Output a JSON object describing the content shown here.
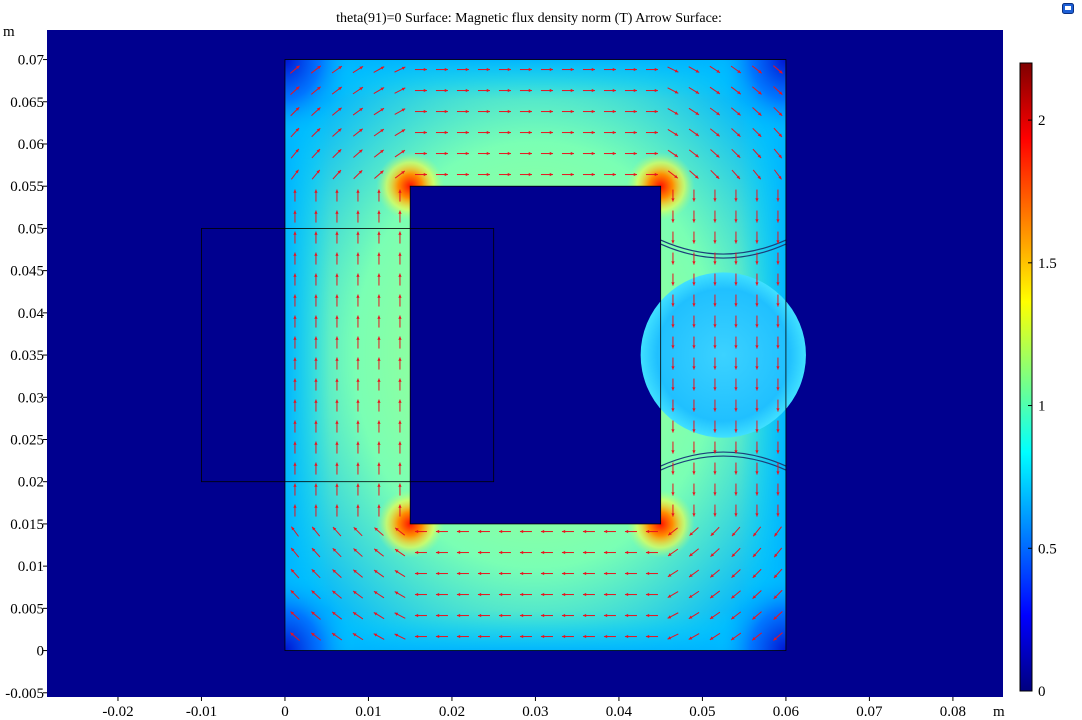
{
  "chart_data": {
    "type": "heatmap",
    "title": "theta(91)=0   Surface: Magnetic flux density norm (T)  Arrow Surface:",
    "xlabel": "m",
    "ylabel": "m",
    "xlim": [
      -0.0285,
      0.086
    ],
    "ylim": [
      -0.0055,
      0.0735
    ],
    "x_ticks": [
      {
        "value": -0.02,
        "label": "-0.02"
      },
      {
        "value": -0.01,
        "label": "-0.01"
      },
      {
        "value": 0,
        "label": "0"
      },
      {
        "value": 0.01,
        "label": "0.01"
      },
      {
        "value": 0.02,
        "label": "0.02"
      },
      {
        "value": 0.03,
        "label": "0.03"
      },
      {
        "value": 0.04,
        "label": "0.04"
      },
      {
        "value": 0.05,
        "label": "0.05"
      },
      {
        "value": 0.06,
        "label": "0.06"
      },
      {
        "value": 0.07,
        "label": "0.07"
      },
      {
        "value": 0.08,
        "label": "0.08"
      }
    ],
    "y_ticks": [
      {
        "value": -0.005,
        "label": "-0.005"
      },
      {
        "value": 0,
        "label": "0"
      },
      {
        "value": 0.005,
        "label": "0.005"
      },
      {
        "value": 0.01,
        "label": "0.01"
      },
      {
        "value": 0.015,
        "label": "0.015"
      },
      {
        "value": 0.02,
        "label": "0.02"
      },
      {
        "value": 0.025,
        "label": "0.025"
      },
      {
        "value": 0.03,
        "label": "0.03"
      },
      {
        "value": 0.035,
        "label": "0.035"
      },
      {
        "value": 0.04,
        "label": "0.04"
      },
      {
        "value": 0.045,
        "label": "0.045"
      },
      {
        "value": 0.05,
        "label": "0.05"
      },
      {
        "value": 0.055,
        "label": "0.055"
      },
      {
        "value": 0.06,
        "label": "0.06"
      },
      {
        "value": 0.065,
        "label": "0.065"
      },
      {
        "value": 0.07,
        "label": "0.07"
      }
    ],
    "colorbar": {
      "min": 0,
      "max": 2.2,
      "ticks": [
        {
          "value": 0,
          "label": "0"
        },
        {
          "value": 0.5,
          "label": "0.5"
        },
        {
          "value": 1,
          "label": "1"
        },
        {
          "value": 1.5,
          "label": "1.5"
        },
        {
          "value": 2,
          "label": "2"
        }
      ],
      "colormap": [
        "#00007f",
        "#0000ff",
        "#00ffff",
        "#ffff00",
        "#ff0000",
        "#7f0000"
      ]
    },
    "geometry": {
      "core_outer": {
        "x": [
          0,
          0.06
        ],
        "y": [
          0,
          0.07
        ]
      },
      "core_window": {
        "x": [
          0.015,
          0.045
        ],
        "y": [
          0.015,
          0.055
        ]
      },
      "coil_box": {
        "x": [
          -0.01,
          0.025
        ],
        "y": [
          0.02,
          0.05
        ]
      },
      "pole_disc": {
        "center": [
          0.0525,
          0.035
        ],
        "radius": 0.0099
      }
    },
    "field_levels": {
      "core_limbs": 1.2,
      "inner_corners": 2.1,
      "outer_corners": 0.2,
      "pole_region": 0.85,
      "background": 0
    },
    "arrow_color": "#e8131e"
  },
  "colors": {
    "background_field": "#00008f",
    "core_mid": "#7fffa0",
    "arrow": "#e8131e",
    "outline": "#000000"
  },
  "icons": {
    "corner": "window-restore-icon"
  }
}
